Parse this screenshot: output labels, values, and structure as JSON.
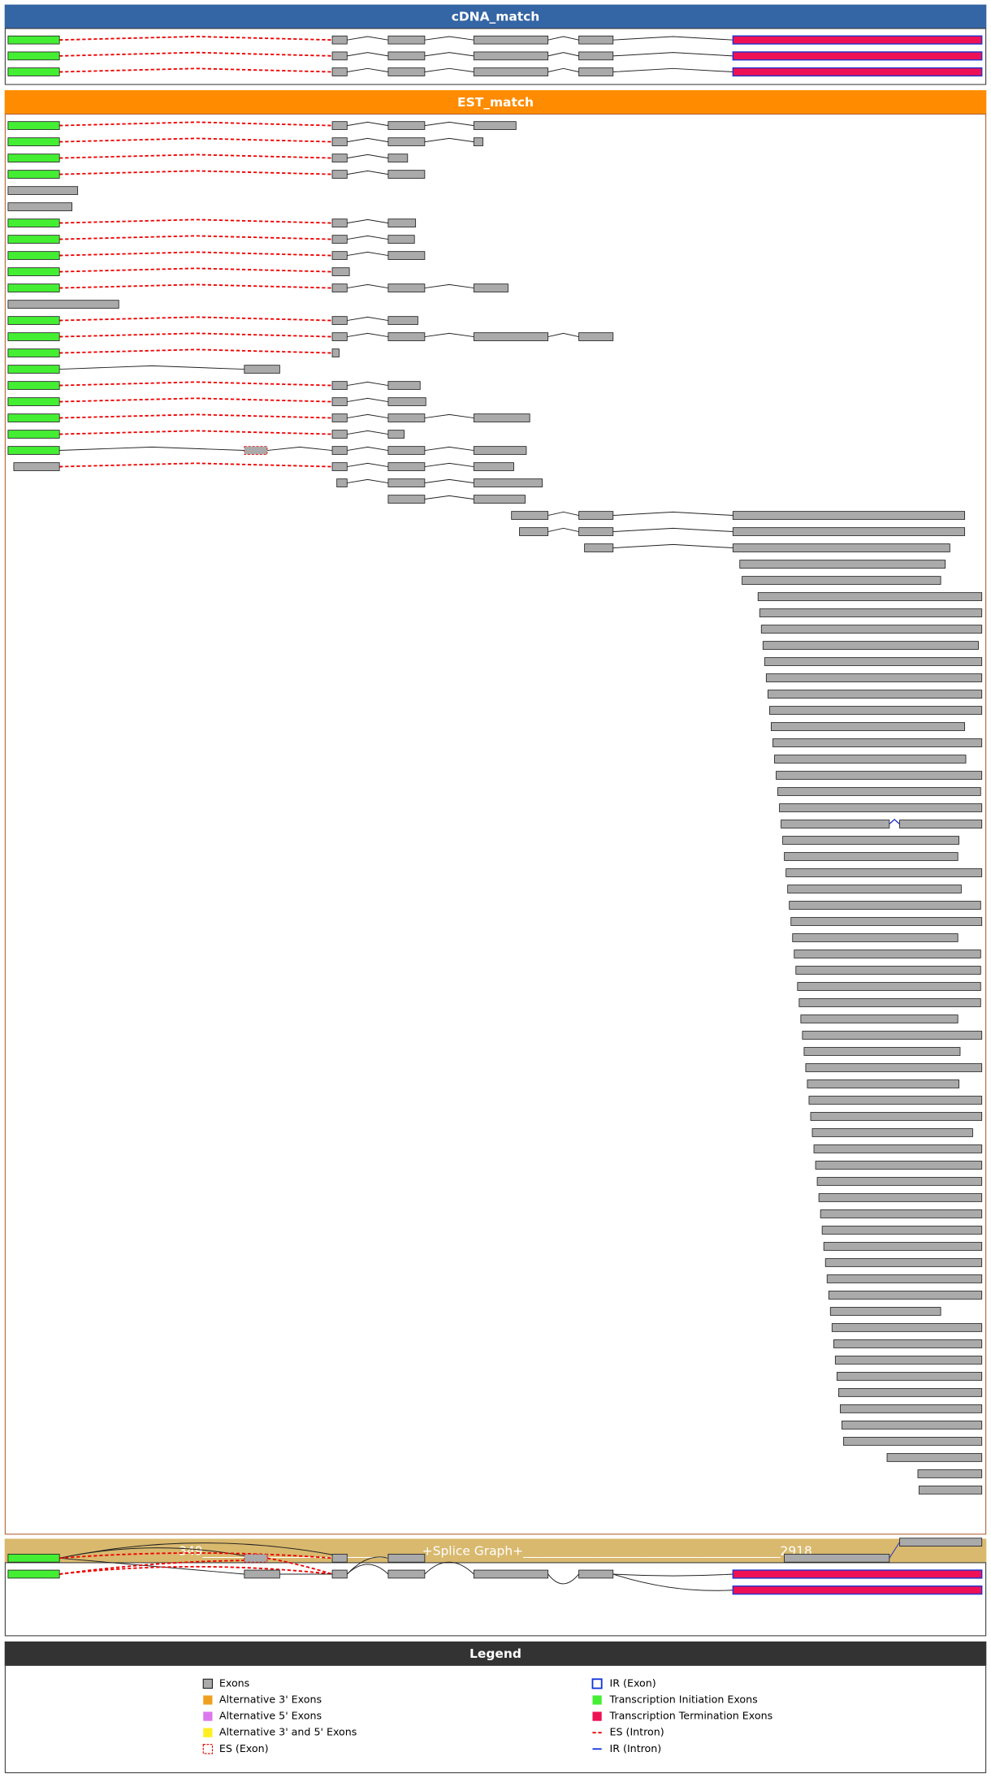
{
  "panels": [
    {
      "title": "cDNA_match"
    },
    {
      "title": "EST_match"
    },
    {
      "title": "349___________________________________+Splice Graph+_________________________________________2918"
    }
  ],
  "legend": {
    "title": "Legend",
    "items": [
      {
        "label": "Exons"
      },
      {
        "label": "Alternative 3' Exons"
      },
      {
        "label": "Alternative 5' Exons"
      },
      {
        "label": "Alternative 3' and 5' Exons"
      },
      {
        "label": "ES (Exon)"
      },
      {
        "label": "IR (Exon)"
      },
      {
        "label": "Transcription Initiation Exons"
      },
      {
        "label": "Transcription Termination Exons"
      },
      {
        "label": "ES (Intron)"
      },
      {
        "label": "IR (Intron)"
      }
    ]
  }
}
